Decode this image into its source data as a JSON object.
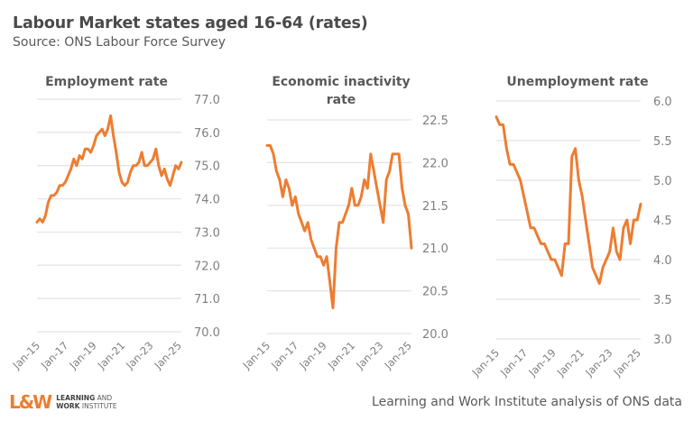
{
  "header": {
    "title": "Labour Market states aged 16-64 (rates)",
    "subtitle": "Source: ONS Labour Force Survey"
  },
  "footer": {
    "logo_mark": "L&W",
    "logo_line1_bold": "LEARNING",
    "logo_line1_rest": " AND",
    "logo_line2_bold": "WORK",
    "logo_line2_rest": " INSTITUTE",
    "credit": "Learning and Work Institute analysis of ONS data"
  },
  "colors": {
    "line": "#ED7D31",
    "grid": "#e3e3e3",
    "text": "#595959"
  },
  "chart_data": [
    {
      "type": "line",
      "title": "Employment rate",
      "xlabel": "",
      "ylabel": "",
      "x_ticks": [
        "Jan-15",
        "Jan-17",
        "Jan-19",
        "Jan-21",
        "Jan-23",
        "Jan-25"
      ],
      "x_range": [
        2015.0,
        2025.2
      ],
      "ylim": [
        70.0,
        77.0
      ],
      "y_ticks": [
        "70.0",
        "71.0",
        "72.0",
        "73.0",
        "74.0",
        "75.0",
        "76.0",
        "77.0"
      ],
      "y_axis": "right",
      "grid": true,
      "series": [
        {
          "name": "Employment rate",
          "x_start": 2015.0,
          "x_step": 0.1667,
          "values": [
            73.3,
            73.4,
            73.3,
            73.5,
            73.9,
            74.1,
            74.1,
            74.2,
            74.4,
            74.4,
            74.5,
            74.7,
            74.9,
            75.2,
            75.0,
            75.3,
            75.2,
            75.5,
            75.5,
            75.4,
            75.6,
            75.9,
            76.0,
            76.1,
            75.9,
            76.1,
            76.5,
            75.9,
            75.4,
            74.8,
            74.5,
            74.4,
            74.5,
            74.8,
            75.0,
            75.0,
            75.1,
            75.4,
            75.0,
            75.0,
            75.1,
            75.2,
            75.5,
            75.0,
            74.7,
            74.9,
            74.6,
            74.4,
            74.7,
            75.0,
            74.9,
            75.1
          ]
        }
      ]
    },
    {
      "type": "line",
      "title": "Economic inactivity rate",
      "xlabel": "",
      "ylabel": "",
      "x_ticks": [
        "Jan-15",
        "Jan-17",
        "Jan-19",
        "Jan-21",
        "Jan-23",
        "Jan-25"
      ],
      "x_range": [
        2015.0,
        2025.2
      ],
      "ylim": [
        20.0,
        22.5
      ],
      "y_ticks": [
        "20.0",
        "20.5",
        "21.0",
        "21.5",
        "22.0",
        "22.5"
      ],
      "y_axis": "right",
      "grid": true,
      "series": [
        {
          "name": "Economic inactivity rate",
          "x_start": 2015.0,
          "x_step": 0.1667,
          "values": [
            22.2,
            22.2,
            22.1,
            21.9,
            21.8,
            21.6,
            21.8,
            21.7,
            21.5,
            21.6,
            21.4,
            21.3,
            21.2,
            21.3,
            21.1,
            21.0,
            20.9,
            20.9,
            20.8,
            20.9,
            20.6,
            20.3,
            21.0,
            21.3,
            21.3,
            21.4,
            21.5,
            21.7,
            21.5,
            21.5,
            21.6,
            21.8,
            21.7,
            22.1,
            21.9,
            21.7,
            21.5,
            21.3,
            21.8,
            21.9,
            22.1,
            22.1,
            22.1,
            21.7,
            21.5,
            21.4,
            21.0
          ]
        }
      ]
    },
    {
      "type": "line",
      "title": "Unemployment rate",
      "xlabel": "",
      "ylabel": "",
      "x_ticks": [
        "Jan-15",
        "Jan-17",
        "Jan-19",
        "Jan-21",
        "Jan-23",
        "Jan-25"
      ],
      "x_range": [
        2015.0,
        2025.2
      ],
      "ylim": [
        3.0,
        6.0
      ],
      "y_ticks": [
        "3.0",
        "3.5",
        "4.0",
        "4.5",
        "5.0",
        "5.5",
        "6.0"
      ],
      "y_axis": "right",
      "grid": true,
      "series": [
        {
          "name": "Unemployment rate",
          "x_start": 2015.0,
          "x_step": 0.1667,
          "values": [
            5.8,
            5.7,
            5.7,
            5.4,
            5.2,
            5.2,
            5.1,
            5.0,
            4.8,
            4.6,
            4.4,
            4.4,
            4.3,
            4.2,
            4.2,
            4.1,
            4.0,
            4.0,
            3.9,
            3.8,
            4.2,
            4.2,
            5.3,
            5.4,
            5.0,
            4.8,
            4.5,
            4.2,
            3.9,
            3.8,
            3.7,
            3.9,
            4.0,
            4.1,
            4.4,
            4.1,
            4.0,
            4.4,
            4.5,
            4.2,
            4.5,
            4.5,
            4.7
          ]
        }
      ]
    }
  ]
}
